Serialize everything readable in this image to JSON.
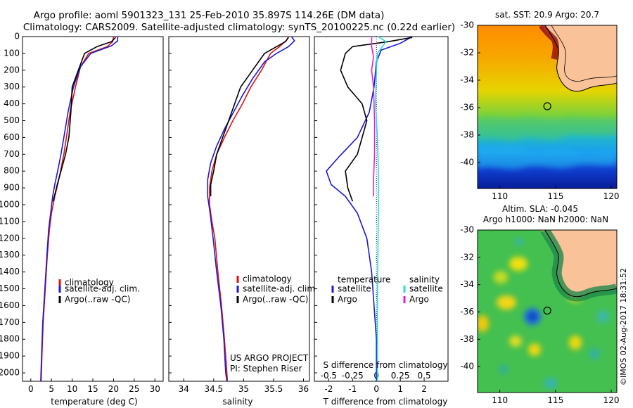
{
  "header": {
    "line1": "Argo profile: aoml 5901323_131 25-Feb-2010 35.897S 114.26E (DM data)",
    "line2": "Climatology: CARS2009. Satellite-adjusted climatology: synTS_20100225.nc (0.22d earlier)"
  },
  "colors": {
    "climatology": "#e01010",
    "satellite": "#1a1ad8",
    "argo": "#000000",
    "sat_salinity": "#22dde0",
    "argo_salinity": "#e020e0"
  },
  "credits": {
    "project": "US ARGO PROJECT",
    "pi": "PI: Stephen Riser",
    "stamp": "©IMOS 02-Aug-2017 18:31:52"
  },
  "chart_data": [
    {
      "type": "line",
      "name": "temperature",
      "xlabel": "temperature (deg C)",
      "xlim": [
        -2,
        32
      ],
      "xticks": [
        "0",
        "5",
        "10",
        "15",
        "20",
        "25",
        "30"
      ],
      "ylim": [
        0,
        2050
      ],
      "yticks": [
        "0",
        "100",
        "200",
        "300",
        "400",
        "500",
        "600",
        "700",
        "800",
        "900",
        "1000",
        "1100",
        "1200",
        "1300",
        "1400",
        "1500",
        "1600",
        "1700",
        "1800",
        "1900",
        "2000"
      ],
      "legend": [
        "climatology",
        "satellite-adj. clim.",
        "Argo(..raw -QC)"
      ],
      "series": [
        {
          "name": "climatology",
          "color": "red",
          "points": [
            [
              20,
              0
            ],
            [
              19.8,
              30
            ],
            [
              18.5,
              60
            ],
            [
              14,
              100
            ],
            [
              12,
              180
            ],
            [
              10.8,
              300
            ],
            [
              9.5,
              450
            ],
            [
              8.6,
              600
            ],
            [
              8,
              700
            ],
            [
              7.2,
              800
            ],
            [
              6.5,
              880
            ],
            [
              5.8,
              950
            ],
            [
              5,
              1050
            ],
            [
              4.5,
              1150
            ],
            [
              4,
              1300
            ],
            [
              3.5,
              1500
            ],
            [
              3,
              1700
            ],
            [
              2.7,
              1900
            ],
            [
              2.5,
              2050
            ]
          ]
        },
        {
          "name": "satellite-adj. clim.",
          "color": "blue",
          "points": [
            [
              21,
              0
            ],
            [
              21,
              25
            ],
            [
              19.5,
              55
            ],
            [
              14.5,
              100
            ],
            [
              12,
              180
            ],
            [
              10.3,
              300
            ],
            [
              9,
              450
            ],
            [
              8,
              600
            ],
            [
              7.3,
              700
            ],
            [
              6.5,
              800
            ],
            [
              5.8,
              880
            ],
            [
              5.3,
              950
            ],
            [
              4.8,
              1050
            ],
            [
              4.3,
              1150
            ],
            [
              3.9,
              1300
            ],
            [
              3.4,
              1500
            ],
            [
              2.9,
              1700
            ],
            [
              2.6,
              1900
            ],
            [
              2.4,
              2050
            ]
          ]
        },
        {
          "name": "Argo(..raw -QC)",
          "color": "black",
          "points": [
            [
              20.5,
              5
            ],
            [
              19.5,
              30
            ],
            [
              16,
              60
            ],
            [
              13,
              100
            ],
            [
              11.5,
              200
            ],
            [
              10,
              300
            ],
            [
              9.7,
              450
            ],
            [
              9.2,
              600
            ],
            [
              8.4,
              700
            ],
            [
              7.3,
              800
            ],
            [
              6.4,
              880
            ],
            [
              6,
              920
            ],
            [
              5.4,
              980
            ]
          ]
        }
      ]
    },
    {
      "type": "line",
      "name": "salinity",
      "xlabel": "salinity",
      "xlim": [
        33.75,
        36.1
      ],
      "xticks": [
        "34",
        "34.5",
        "35",
        "35.5",
        "36"
      ],
      "ylim": [
        0,
        2050
      ],
      "legend": [
        "climatology",
        "satellite-adj. clim.",
        "Argo(..raw -QC)"
      ],
      "series": [
        {
          "name": "climatology",
          "color": "red",
          "points": [
            [
              35.75,
              0
            ],
            [
              35.72,
              20
            ],
            [
              35.6,
              60
            ],
            [
              35.45,
              100
            ],
            [
              35.3,
              200
            ],
            [
              35.12,
              300
            ],
            [
              34.98,
              400
            ],
            [
              34.82,
              500
            ],
            [
              34.68,
              600
            ],
            [
              34.55,
              700
            ],
            [
              34.47,
              800
            ],
            [
              34.43,
              900
            ],
            [
              34.43,
              1000
            ],
            [
              34.47,
              1100
            ],
            [
              34.52,
              1200
            ],
            [
              34.57,
              1400
            ],
            [
              34.63,
              1600
            ],
            [
              34.68,
              1800
            ],
            [
              34.72,
              2000
            ],
            [
              34.73,
              2050
            ]
          ]
        },
        {
          "name": "satellite-adj. clim.",
          "color": "blue",
          "points": [
            [
              35.8,
              0
            ],
            [
              35.85,
              25
            ],
            [
              35.75,
              60
            ],
            [
              35.55,
              100
            ],
            [
              35.35,
              150
            ],
            [
              35.15,
              250
            ],
            [
              34.98,
              350
            ],
            [
              34.83,
              450
            ],
            [
              34.68,
              550
            ],
            [
              34.55,
              650
            ],
            [
              34.45,
              750
            ],
            [
              34.4,
              850
            ],
            [
              34.4,
              950
            ],
            [
              34.44,
              1050
            ],
            [
              34.49,
              1200
            ],
            [
              34.55,
              1400
            ],
            [
              34.62,
              1600
            ],
            [
              34.67,
              1800
            ],
            [
              34.7,
              2000
            ],
            [
              34.72,
              2050
            ]
          ]
        },
        {
          "name": "Argo(..raw -QC)",
          "color": "black",
          "points": [
            [
              35.75,
              5
            ],
            [
              35.7,
              30
            ],
            [
              35.55,
              60
            ],
            [
              35.35,
              100
            ],
            [
              35.15,
              200
            ],
            [
              34.95,
              300
            ],
            [
              34.85,
              400
            ],
            [
              34.75,
              500
            ],
            [
              34.65,
              600
            ],
            [
              34.55,
              700
            ],
            [
              34.5,
              800
            ],
            [
              34.45,
              880
            ],
            [
              34.45,
              950
            ]
          ]
        }
      ]
    },
    {
      "type": "line",
      "name": "difference from climatology",
      "xlabel_top": "S difference from climatology",
      "xlabel": "T difference from climatology",
      "xlim": [
        -2.6,
        3
      ],
      "xticks": [
        "-2",
        "-1",
        "0",
        "1",
        "2"
      ],
      "xticks_top": [
        "-0.5",
        "-0.25",
        "0",
        "0.25",
        "0.5"
      ],
      "xlim_top": [
        -0.65,
        0.75
      ],
      "ylim": [
        0,
        2050
      ],
      "legend_headers": [
        "temperature",
        "salinity"
      ],
      "legend": [
        "satellite",
        "Argo",
        "satellite",
        "Argo"
      ],
      "series": [
        {
          "name": "temperature satellite",
          "color": "blue",
          "points": [
            [
              1.5,
              0
            ],
            [
              1,
              40
            ],
            [
              0.2,
              80
            ],
            [
              0,
              150
            ],
            [
              -0.1,
              300
            ],
            [
              -0.3,
              450
            ],
            [
              -0.8,
              600
            ],
            [
              -1.6,
              720
            ],
            [
              -2.1,
              800
            ],
            [
              -1.9,
              880
            ],
            [
              -1.3,
              950
            ],
            [
              -0.8,
              1050
            ],
            [
              -0.4,
              1200
            ],
            [
              -0.2,
              1400
            ],
            [
              -0.1,
              1600
            ],
            [
              0,
              1800
            ],
            [
              0,
              2050
            ]
          ]
        },
        {
          "name": "temperature Argo",
          "color": "black",
          "points": [
            [
              1.5,
              5
            ],
            [
              0.5,
              30
            ],
            [
              -1,
              60
            ],
            [
              -1.3,
              100
            ],
            [
              -1.5,
              200
            ],
            [
              -1.2,
              300
            ],
            [
              -0.6,
              400
            ],
            [
              -0.4,
              500
            ],
            [
              -0.6,
              600
            ],
            [
              -0.8,
              700
            ],
            [
              -1.3,
              800
            ],
            [
              -1.2,
              900
            ],
            [
              -1,
              980
            ]
          ]
        },
        {
          "name": "salinity satellite",
          "color": "cyan",
          "points": [
            [
              0.02,
              0
            ],
            [
              0.1,
              30
            ],
            [
              0.01,
              100
            ],
            [
              0,
              200
            ],
            [
              -0.01,
              400
            ],
            [
              0.01,
              600
            ],
            [
              0.02,
              800
            ],
            [
              0.02,
              1000
            ],
            [
              0.015,
              1300
            ],
            [
              0.01,
              1600
            ],
            [
              0.01,
              2050
            ]
          ]
        },
        {
          "name": "salinity Argo",
          "color": "magenta",
          "points": [
            [
              -0.05,
              5
            ],
            [
              -0.05,
              60
            ],
            [
              -0.03,
              120
            ],
            [
              -0.05,
              200
            ],
            [
              -0.03,
              300
            ],
            [
              -0.02,
              500
            ],
            [
              -0.02,
              700
            ],
            [
              -0.03,
              850
            ],
            [
              -0.03,
              950
            ]
          ]
        }
      ]
    },
    {
      "type": "heatmap",
      "name": "sat SST map",
      "title": "sat. SST: 20.9  Argo: 20.7",
      "xlim": [
        108,
        120.5
      ],
      "ylim": [
        -41.9,
        -30
      ],
      "xticks": [
        "110",
        "115",
        "120"
      ],
      "yticks": [
        "-30",
        "-32",
        "-34",
        "-36",
        "-38",
        "-40"
      ],
      "marker": {
        "lon": 114.26,
        "lat": -35.9
      }
    },
    {
      "type": "heatmap",
      "name": "altimetry SLA map",
      "title": "Altim. SLA: -0.045",
      "subtitle": "Argo h1000: NaN h2000: NaN",
      "xlim": [
        108,
        120.5
      ],
      "ylim": [
        -41.9,
        -30
      ],
      "xticks": [
        "110",
        "115",
        "120"
      ],
      "yticks": [
        "-30",
        "-32",
        "-34",
        "-36",
        "-38",
        "-40"
      ],
      "marker": {
        "lon": 114.26,
        "lat": -35.9
      }
    }
  ]
}
